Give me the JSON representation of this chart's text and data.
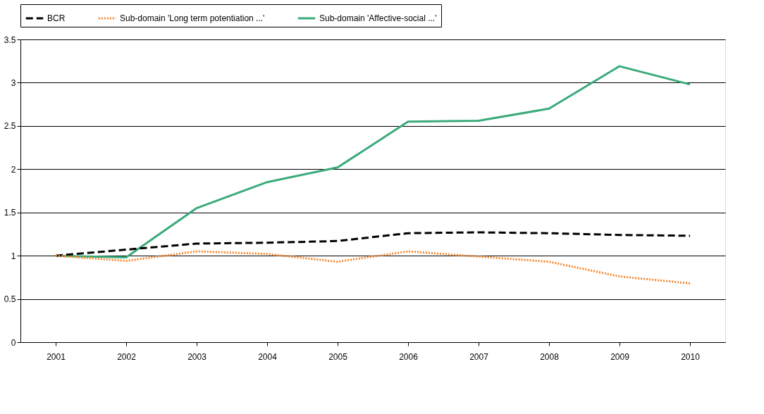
{
  "chart_data": {
    "type": "line",
    "categories": [
      "2001",
      "2002",
      "2003",
      "2004",
      "2005",
      "2006",
      "2007",
      "2008",
      "2009",
      "2010"
    ],
    "series": [
      {
        "name": "BCR",
        "color": "#000000",
        "line_style": "dashed",
        "values": [
          1.0,
          1.07,
          1.14,
          1.15,
          1.17,
          1.26,
          1.27,
          1.26,
          1.24,
          1.23
        ]
      },
      {
        "name": "Sub-domain 'Long term potentiation ...'",
        "color": "#f7862a",
        "line_style": "dotted",
        "values": [
          1.0,
          0.94,
          1.05,
          1.02,
          0.93,
          1.05,
          0.99,
          0.93,
          0.76,
          0.68
        ]
      },
      {
        "name": "Sub-domain 'Affective-social ...'",
        "color": "#3aaa7a",
        "line_style": "solid",
        "values": [
          1.0,
          0.98,
          1.55,
          1.85,
          2.02,
          2.55,
          2.56,
          2.7,
          3.19,
          2.98
        ]
      }
    ],
    "ylim": [
      0,
      3.5
    ],
    "yticks": [
      0,
      0.5,
      1,
      1.5,
      2,
      2.5,
      3,
      3.5
    ],
    "grid": "y",
    "legend": "top",
    "marker": "none"
  }
}
